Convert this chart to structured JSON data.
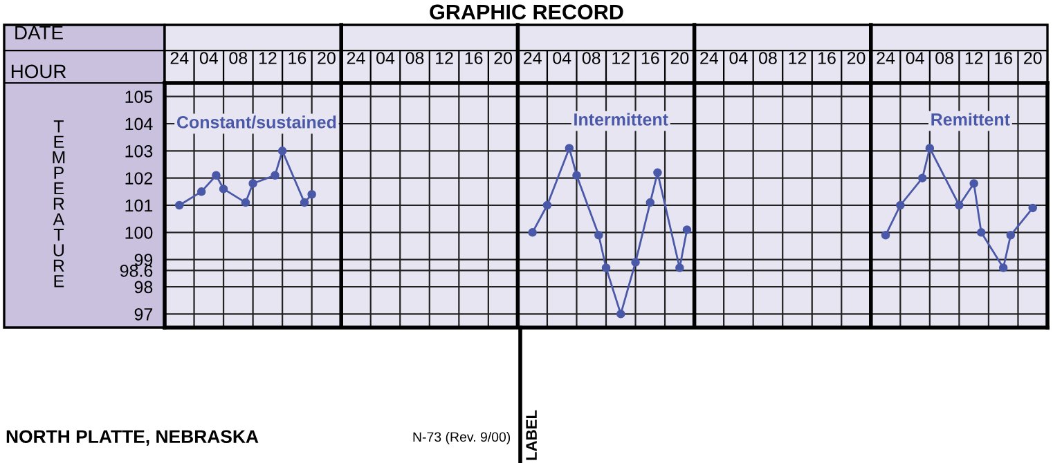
{
  "chart_data": {
    "type": "line",
    "title": "GRAPHIC RECORD",
    "xlabel": "HOUR",
    "ylabel": "TEMPERATURE",
    "annotations": [
      "DATE",
      "NORTH PLATTE, NEBRASKA",
      "N-73 (Rev. 9/00)",
      "LABEL"
    ],
    "categories": [
      null,
      null,
      "24",
      null,
      null,
      null,
      "04",
      null,
      null,
      null,
      "08",
      null,
      null,
      null,
      "12",
      null,
      null,
      null,
      "16",
      null,
      null,
      null,
      "20",
      null,
      null,
      null,
      "24",
      null,
      null,
      null,
      "04",
      null,
      null,
      null,
      "08",
      null,
      null,
      null,
      "12",
      null,
      null,
      null,
      "16",
      null,
      null,
      null,
      "20",
      null,
      null,
      null,
      "24",
      null,
      null,
      null,
      "04",
      null,
      null,
      null,
      "08",
      null,
      null,
      null,
      "12",
      null,
      null,
      null,
      "16",
      null,
      null,
      null,
      "20",
      null,
      null,
      null,
      "24",
      null,
      null,
      null,
      "04",
      null,
      null,
      null,
      "08",
      null,
      null,
      null,
      "12",
      null,
      null,
      null,
      "16",
      null,
      null,
      null,
      "20",
      null,
      null,
      null,
      "24",
      null,
      null,
      null,
      "04",
      null,
      null,
      null,
      "08",
      null,
      null,
      null,
      "12",
      null,
      null,
      null,
      "16",
      null,
      null,
      null,
      "20",
      null
    ],
    "ylim": [
      96.5,
      105.5
    ],
    "yticks": [
      97,
      98,
      98.6,
      99,
      100,
      101,
      102,
      103,
      104,
      105
    ],
    "grid": true,
    "marker": "circle",
    "line_style": "solid",
    "series": [
      {
        "name": "Constant/sustained",
        "color": "#4a58a8",
        "values": [
          null,
          null,
          101.0,
          null,
          null,
          101.5,
          null,
          102.1,
          101.6,
          null,
          null,
          101.1,
          101.8,
          null,
          null,
          102.1,
          103.0,
          null,
          null,
          101.1,
          101.4,
          null,
          null,
          null,
          null,
          null,
          null,
          null,
          null,
          null,
          null,
          null,
          null,
          null,
          null,
          null,
          null,
          null,
          null,
          null,
          null,
          null,
          null,
          null,
          null,
          null,
          null,
          null,
          null,
          null,
          null,
          null,
          null,
          null,
          null,
          null,
          null,
          null,
          null,
          null,
          null,
          null,
          null,
          null,
          null,
          null,
          null,
          null,
          null,
          null,
          null,
          null,
          null,
          null,
          null,
          null,
          null,
          null,
          null,
          null,
          null,
          null,
          null,
          null,
          null,
          null,
          null,
          null,
          null,
          null,
          null,
          null,
          null,
          null,
          null,
          null,
          null,
          null,
          null,
          null,
          null,
          null,
          null,
          null,
          null,
          null,
          null,
          null,
          null,
          null,
          null,
          null,
          null,
          null,
          null,
          null,
          null,
          null,
          null,
          null
        ]
      },
      {
        "name": "Intermittent",
        "color": "#4a58a8",
        "values": [
          null,
          null,
          null,
          null,
          null,
          null,
          null,
          null,
          null,
          null,
          null,
          null,
          null,
          null,
          null,
          null,
          null,
          null,
          null,
          null,
          null,
          null,
          null,
          null,
          null,
          null,
          null,
          null,
          null,
          null,
          null,
          null,
          null,
          null,
          null,
          null,
          null,
          null,
          null,
          null,
          null,
          null,
          null,
          null,
          null,
          null,
          null,
          null,
          null,
          null,
          100.0,
          null,
          101.0,
          null,
          null,
          103.1,
          102.1,
          null,
          null,
          99.9,
          98.7,
          null,
          97.0,
          null,
          98.9,
          null,
          101.1,
          102.2,
          null,
          null,
          98.7,
          100.1,
          null,
          null,
          null,
          null,
          null,
          null,
          null,
          null,
          null,
          null,
          null,
          null,
          null,
          null,
          null,
          null,
          null,
          null,
          null,
          null,
          null,
          null,
          null,
          null,
          null,
          null,
          null,
          null,
          null,
          null,
          null,
          null,
          null,
          null,
          null,
          null,
          null,
          null,
          null,
          null,
          null,
          null,
          null,
          null,
          null,
          null,
          null,
          null
        ]
      },
      {
        "name": "Remittent",
        "color": "#4a58a8",
        "values": [
          null,
          null,
          null,
          null,
          null,
          null,
          null,
          null,
          null,
          null,
          null,
          null,
          null,
          null,
          null,
          null,
          null,
          null,
          null,
          null,
          null,
          null,
          null,
          null,
          null,
          null,
          null,
          null,
          null,
          null,
          null,
          null,
          null,
          null,
          null,
          null,
          null,
          null,
          null,
          null,
          null,
          null,
          null,
          null,
          null,
          null,
          null,
          null,
          null,
          null,
          null,
          null,
          null,
          null,
          null,
          null,
          null,
          null,
          null,
          null,
          null,
          null,
          null,
          null,
          null,
          null,
          null,
          null,
          null,
          null,
          null,
          null,
          null,
          null,
          null,
          null,
          null,
          null,
          null,
          null,
          null,
          null,
          null,
          null,
          null,
          null,
          null,
          null,
          null,
          null,
          null,
          null,
          null,
          null,
          null,
          null,
          null,
          null,
          99.9,
          null,
          101.0,
          null,
          null,
          102.0,
          103.1,
          null,
          null,
          null,
          101.0,
          null,
          101.8,
          100.0,
          null,
          null,
          98.7,
          99.9,
          null,
          null,
          100.9,
          null
        ]
      }
    ]
  }
}
